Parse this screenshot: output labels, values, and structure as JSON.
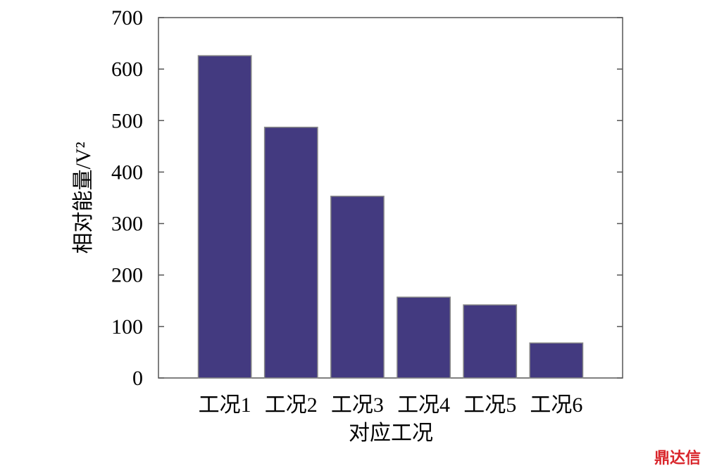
{
  "chart_data": {
    "type": "bar",
    "categories": [
      "工况1",
      "工况2",
      "工况3",
      "工况4",
      "工况5",
      "工况6"
    ],
    "values": [
      626,
      487,
      353,
      157,
      142,
      68
    ],
    "color": "#433a80",
    "x_label": "对应工况",
    "y_label": "相对能量/V²",
    "ylim": [
      0,
      700
    ],
    "yticks": [
      0,
      100,
      200,
      300,
      400,
      500,
      600,
      700
    ],
    "grid": false,
    "watermark": "鼎达信"
  }
}
